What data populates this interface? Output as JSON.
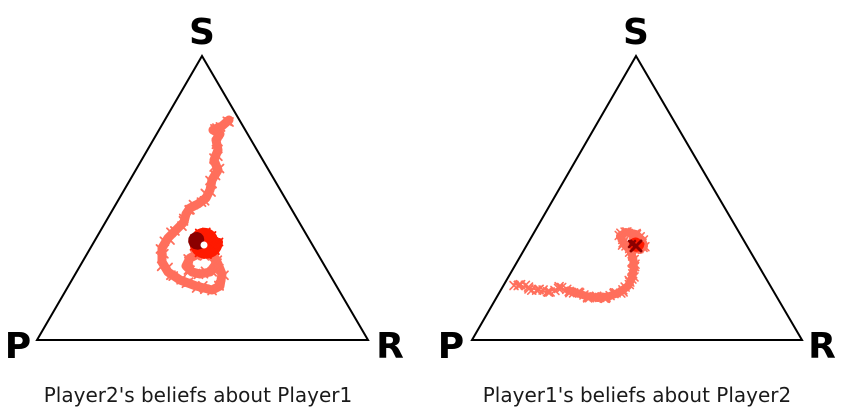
{
  "vertices": {
    "top": "S",
    "left": "P",
    "right": "R"
  },
  "colors": {
    "edge": "#000000",
    "trail": "#ff6f5c",
    "end_mid": "#ff1a00",
    "end_dark": "#8b0000",
    "white": "#ffffff"
  },
  "panels": [
    {
      "caption": "Player2's beliefs about Player1",
      "trajectory_icon": "x-marker"
    },
    {
      "caption": "Player1's beliefs about Player2",
      "trajectory_icon": "x-marker"
    }
  ]
}
